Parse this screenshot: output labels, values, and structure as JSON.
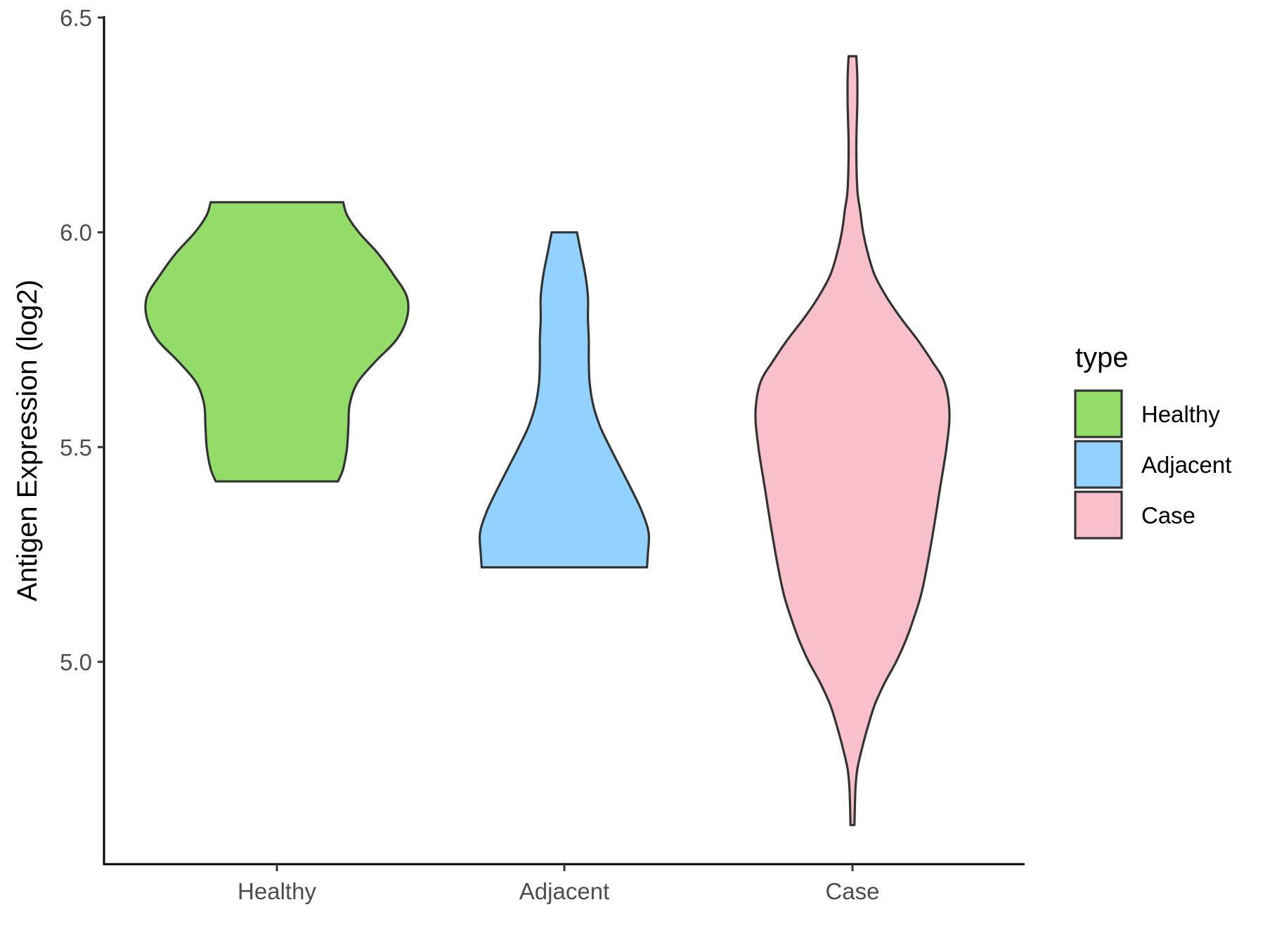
{
  "chart_data": {
    "type": "violin",
    "title": "",
    "xlabel": "",
    "ylabel": "Antigen Expression (log2)",
    "ylim": [
      4.53,
      6.5
    ],
    "yticks": [
      "5.0",
      "5.5",
      "6.0",
      "6.5"
    ],
    "categories": [
      "Healthy",
      "Adjacent",
      "Case"
    ],
    "grid": false,
    "legend": {
      "title": "type",
      "position": "right",
      "entries": [
        "Healthy",
        "Adjacent",
        "Case"
      ]
    },
    "series": [
      {
        "name": "Healthy",
        "color": "#93dc6a",
        "min": 5.42,
        "max": 6.07,
        "density": [
          [
            5.42,
            0.47
          ],
          [
            5.45,
            0.51
          ],
          [
            5.5,
            0.54
          ],
          [
            5.55,
            0.55
          ],
          [
            5.6,
            0.56
          ],
          [
            5.65,
            0.62
          ],
          [
            5.7,
            0.76
          ],
          [
            5.75,
            0.92
          ],
          [
            5.8,
            1.0
          ],
          [
            5.85,
            1.0
          ],
          [
            5.9,
            0.9
          ],
          [
            5.95,
            0.78
          ],
          [
            6.0,
            0.63
          ],
          [
            6.04,
            0.54
          ],
          [
            6.07,
            0.51
          ]
        ]
      },
      {
        "name": "Adjacent",
        "color": "#93d2fe",
        "min": 5.22,
        "max": 6.0,
        "density": [
          [
            5.22,
            0.98
          ],
          [
            5.25,
            0.99
          ],
          [
            5.3,
            1.0
          ],
          [
            5.35,
            0.92
          ],
          [
            5.4,
            0.8
          ],
          [
            5.45,
            0.67
          ],
          [
            5.5,
            0.54
          ],
          [
            5.55,
            0.42
          ],
          [
            5.6,
            0.34
          ],
          [
            5.65,
            0.3
          ],
          [
            5.7,
            0.29
          ],
          [
            5.75,
            0.29
          ],
          [
            5.8,
            0.28
          ],
          [
            5.85,
            0.28
          ],
          [
            5.9,
            0.25
          ],
          [
            5.95,
            0.2
          ],
          [
            6.0,
            0.15
          ]
        ]
      },
      {
        "name": "Case",
        "color": "#f7c0cb",
        "min": 4.62,
        "max": 6.41,
        "density": [
          [
            4.62,
            0.02
          ],
          [
            4.7,
            0.03
          ],
          [
            4.75,
            0.05
          ],
          [
            4.8,
            0.1
          ],
          [
            4.85,
            0.16
          ],
          [
            4.9,
            0.23
          ],
          [
            4.95,
            0.33
          ],
          [
            5.0,
            0.45
          ],
          [
            5.05,
            0.55
          ],
          [
            5.1,
            0.63
          ],
          [
            5.15,
            0.7
          ],
          [
            5.2,
            0.75
          ],
          [
            5.3,
            0.83
          ],
          [
            5.4,
            0.9
          ],
          [
            5.5,
            0.97
          ],
          [
            5.58,
            1.0
          ],
          [
            5.65,
            0.95
          ],
          [
            5.7,
            0.82
          ],
          [
            5.75,
            0.67
          ],
          [
            5.8,
            0.5
          ],
          [
            5.85,
            0.35
          ],
          [
            5.9,
            0.23
          ],
          [
            5.95,
            0.16
          ],
          [
            6.0,
            0.11
          ],
          [
            6.05,
            0.08
          ],
          [
            6.1,
            0.05
          ],
          [
            6.2,
            0.04
          ],
          [
            6.3,
            0.05
          ],
          [
            6.36,
            0.05
          ],
          [
            6.41,
            0.04
          ]
        ]
      }
    ]
  }
}
